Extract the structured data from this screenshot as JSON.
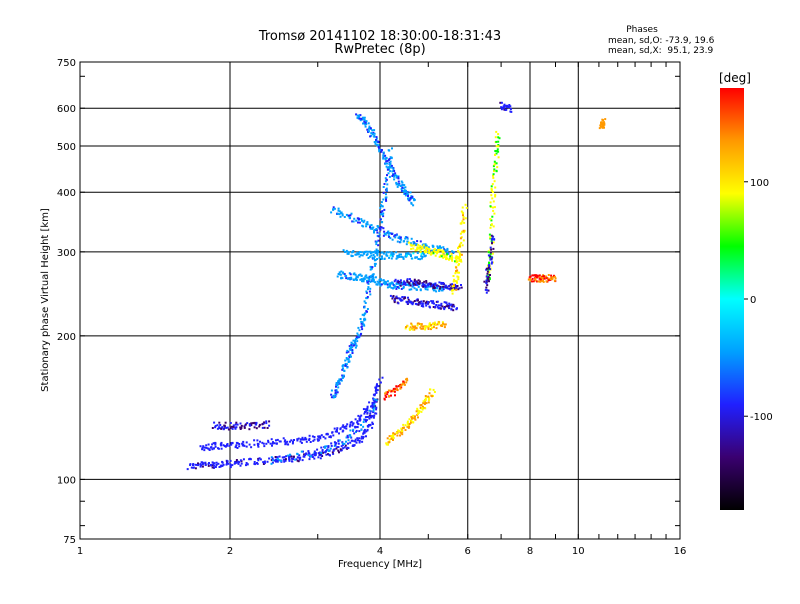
{
  "chart_data": {
    "type": "scatter",
    "title": "Tromsø 20141102 18:30:00-18:31:43",
    "subtitle": "RwPretec (8p)",
    "xlabel": "Frequency [MHz]",
    "ylabel": "Stationary phase Virtual Height [km]",
    "x_scale": "log",
    "y_scale": "log",
    "xlim": [
      1,
      16
    ],
    "ylim": [
      75,
      750
    ],
    "x_ticks": [
      1,
      2,
      4,
      6,
      8,
      10,
      16
    ],
    "y_ticks": [
      75,
      100,
      200,
      300,
      400,
      500,
      600,
      750
    ],
    "grid_x": [
      2,
      4,
      6,
      8,
      10
    ],
    "grid_y": [
      100,
      200,
      300,
      400,
      500,
      600
    ],
    "grid": true,
    "phase_stats": {
      "heading": "Phases",
      "line_o": "mean, sd,O: -73.9, 19.6",
      "line_x": "mean, sd,X:  95.1, 23.9"
    },
    "colorbar": {
      "label": "[deg]",
      "range": [
        -180,
        180
      ],
      "ticks": [
        100,
        0,
        -100
      ],
      "colors": [
        "#000000",
        "#3a0070",
        "#2020ff",
        "#00a0ff",
        "#00ffff",
        "#00ff00",
        "#ffff00",
        "#ff9900",
        "#ff0000"
      ]
    },
    "traces": [
      {
        "x": [
          1.65,
          1.8,
          1.95,
          2.1,
          2.4,
          2.7,
          3.0,
          3.3,
          3.6,
          3.8,
          3.95
        ],
        "y": [
          107,
          108,
          108,
          109,
          110,
          111,
          113,
          116,
          121,
          130,
          150
        ],
        "phase": -100
      },
      {
        "x": [
          1.75,
          1.9,
          2.1,
          2.4,
          2.7,
          3.0,
          3.3,
          3.6,
          3.85,
          4.0
        ],
        "y": [
          117,
          118,
          119,
          120,
          121,
          123,
          127,
          133,
          145,
          165
        ],
        "phase": -90
      },
      {
        "x": [
          1.85,
          2.0,
          2.2,
          2.4
        ],
        "y": [
          130,
          130,
          130,
          131
        ],
        "phase": -110
      },
      {
        "x": [
          2.4,
          2.8,
          3.1,
          3.4,
          3.7,
          3.95
        ],
        "y": [
          110,
          113,
          116,
          122,
          132,
          148
        ],
        "phase": -70
      },
      {
        "x": [
          3.2,
          3.3,
          3.4,
          3.5,
          3.6,
          3.7,
          3.8,
          3.9,
          4.0,
          4.1,
          4.2
        ],
        "y": [
          150,
          160,
          175,
          190,
          200,
          220,
          260,
          300,
          360,
          420,
          500
        ],
        "phase": -60
      },
      {
        "x": [
          3.3,
          3.5,
          3.7,
          3.9,
          4.1,
          4.3,
          4.6,
          5.0,
          5.4
        ],
        "y": [
          270,
          268,
          265,
          262,
          258,
          256,
          255,
          254,
          252
        ],
        "phase": -50
      },
      {
        "x": [
          3.2,
          3.5,
          3.8,
          4.1,
          4.4,
          4.8,
          5.2,
          5.6
        ],
        "y": [
          370,
          355,
          340,
          330,
          320,
          312,
          305,
          298
        ],
        "phase": -60
      },
      {
        "x": [
          3.4,
          3.7,
          4.0,
          4.3,
          4.6,
          5.0
        ],
        "y": [
          300,
          298,
          296,
          296,
          295,
          295
        ],
        "phase": -40
      },
      {
        "x": [
          3.6,
          3.75,
          3.9,
          4.05,
          4.2,
          4.35,
          4.5,
          4.65
        ],
        "y": [
          580,
          560,
          520,
          480,
          450,
          420,
          400,
          380
        ],
        "phase": -60
      },
      {
        "x": [
          4.2,
          4.5,
          4.8,
          5.1,
          5.4,
          5.7
        ],
        "y": [
          240,
          238,
          236,
          234,
          232,
          229
        ],
        "phase": -110
      },
      {
        "x": [
          4.3,
          4.6,
          4.9,
          5.2,
          5.5,
          5.8
        ],
        "y": [
          260,
          260,
          258,
          256,
          255,
          253
        ],
        "phase": -115
      },
      {
        "x": [
          4.6,
          4.9,
          5.2,
          5.5,
          5.8
        ],
        "y": [
          310,
          305,
          300,
          295,
          290
        ],
        "phase": 85
      },
      {
        "x": [
          4.1,
          4.3,
          4.5,
          4.7,
          4.9,
          5.1
        ],
        "y": [
          120,
          125,
          130,
          137,
          145,
          155
        ],
        "phase": 110
      },
      {
        "x": [
          4.1,
          4.3,
          4.5
        ],
        "y": [
          150,
          155,
          162
        ],
        "phase": 160
      },
      {
        "x": [
          4.5,
          4.8,
          5.1,
          5.4
        ],
        "y": [
          210,
          210,
          211,
          212
        ],
        "phase": 120
      },
      {
        "x": [
          5.6,
          5.7,
          5.8,
          5.9
        ],
        "y": [
          250,
          280,
          320,
          380
        ],
        "phase": 100
      },
      {
        "x": [
          6.6,
          6.65,
          6.7,
          6.8,
          6.9
        ],
        "y": [
          260,
          300,
          380,
          460,
          540
        ],
        "phase": 70
      },
      {
        "x": [
          6.5,
          6.6,
          6.7
        ],
        "y": [
          250,
          280,
          330
        ],
        "phase": -110
      },
      {
        "x": [
          8.0,
          8.3,
          8.6,
          9.0
        ],
        "y": [
          265,
          265,
          265,
          266
        ],
        "phase": 160
      },
      {
        "x": [
          7.0,
          7.3
        ],
        "y": [
          610,
          600
        ],
        "phase": -100
      },
      {
        "x": [
          11.1,
          11.2
        ],
        "y": [
          555,
          565
        ],
        "phase": 140
      }
    ]
  }
}
